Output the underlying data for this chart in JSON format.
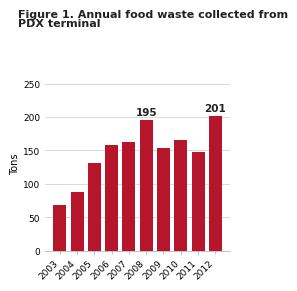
{
  "years": [
    "2003",
    "2004",
    "2005",
    "2006",
    "2007",
    "2008",
    "2009",
    "2010",
    "2011",
    "2012"
  ],
  "values": [
    68,
    88,
    131,
    158,
    163,
    195,
    153,
    165,
    147,
    201
  ],
  "bar_color": "#b5162b",
  "labeled_bars": {
    "2008": 195,
    "2012": 201
  },
  "title_line1": "Figure 1. Annual food waste collected from",
  "title_line2": "PDX terminal",
  "ylabel": "Tons",
  "ylim": [
    0,
    260
  ],
  "yticks": [
    0,
    50,
    100,
    150,
    200,
    250
  ],
  "title_fontsize": 8.0,
  "axis_fontsize": 7.0,
  "tick_fontsize": 6.5,
  "label_fontsize": 7.5,
  "background_color": "#ffffff",
  "grid_color": "#cccccc",
  "bar_width": 0.75
}
